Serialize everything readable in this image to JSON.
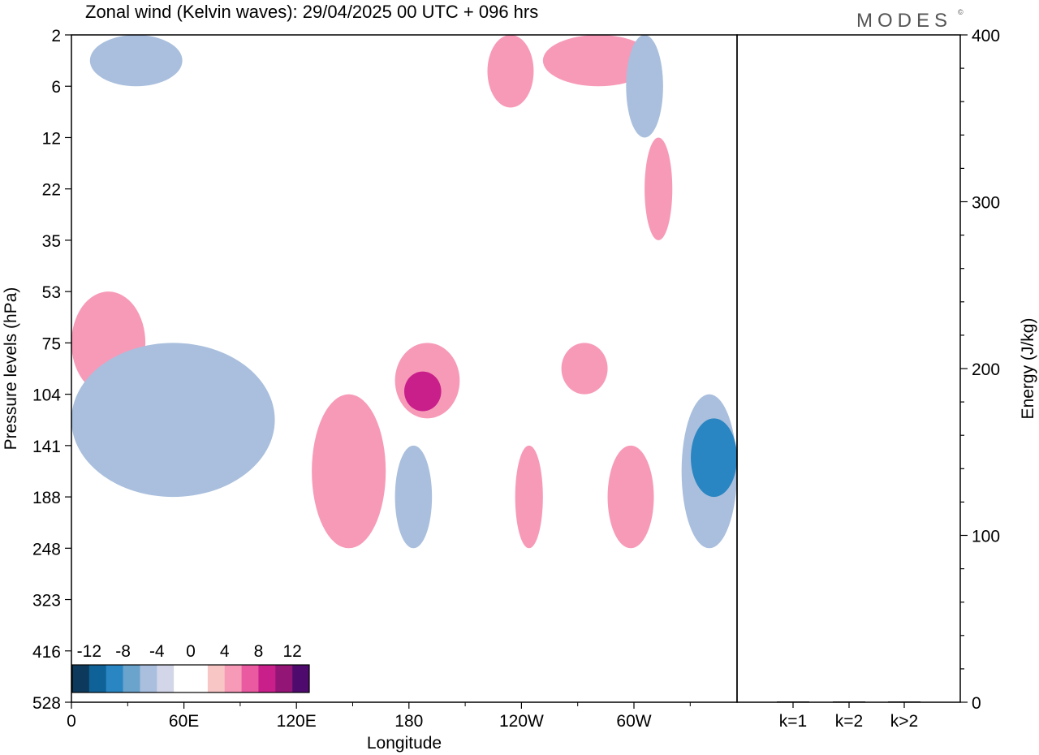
{
  "title": "Zonal wind (Kelvin waves):  29/04/2025  00 UTC  + 096 hrs",
  "logo": "MODES",
  "logo_mark": "©",
  "chart_data": [
    {
      "type": "heatmap",
      "variable": "Zonal wind (Kelvin waves)",
      "xlabel": "Longitude",
      "ylabel": "Pressure levels (hPa)",
      "x_ticks": [
        "0",
        "60E",
        "120E",
        "180",
        "120W",
        "60W"
      ],
      "y_ticks": [
        "2",
        "6",
        "12",
        "22",
        "35",
        "53",
        "75",
        "104",
        "141",
        "188",
        "248",
        "323",
        "416",
        "528"
      ],
      "colorbar": {
        "tick_labels": [
          "-12",
          "-8",
          "-4",
          "0",
          "4",
          "8",
          "12"
        ],
        "colors": [
          "#0d3a5c",
          "#0e6297",
          "#2a86c2",
          "#6aa3cc",
          "#a9bfdd",
          "#d3d6e8",
          "#ffffff",
          "#ffffff",
          "#f9c6c6",
          "#f79ab8",
          "#ea5aa0",
          "#c91f8a",
          "#931576",
          "#4f0a6e"
        ]
      },
      "regions": [
        {
          "sign": "positive",
          "level": 4,
          "lon": [
            0,
            40
          ],
          "hPa": [
            53,
            104
          ]
        },
        {
          "sign": "positive",
          "level": 4,
          "lon": [
            175,
            210
          ],
          "hPa": [
            75,
            120
          ]
        },
        {
          "sign": "positive",
          "level": 4,
          "lon": [
            130,
            170
          ],
          "hPa": [
            104,
            248
          ]
        },
        {
          "sign": "positive",
          "level": 4,
          "lon": [
            225,
            250
          ],
          "hPa": [
            2,
            8
          ]
        },
        {
          "sign": "positive",
          "level": 4,
          "lon": [
            255,
            315
          ],
          "hPa": [
            2,
            6
          ]
        },
        {
          "sign": "positive",
          "level": 4,
          "lon": [
            310,
            325
          ],
          "hPa": [
            12,
            35
          ]
        },
        {
          "sign": "positive",
          "level": 4,
          "lon": [
            265,
            290
          ],
          "hPa": [
            75,
            104
          ]
        },
        {
          "sign": "positive",
          "level": 4,
          "lon": [
            240,
            255
          ],
          "hPa": [
            141,
            248
          ]
        },
        {
          "sign": "positive",
          "level": 4,
          "lon": [
            290,
            315
          ],
          "hPa": [
            141,
            248
          ]
        },
        {
          "sign": "positive",
          "level": 8,
          "lon": [
            180,
            200
          ],
          "hPa": [
            90,
            115
          ]
        },
        {
          "sign": "negative",
          "level": -4,
          "lon": [
            0,
            110
          ],
          "hPa": [
            75,
            188
          ]
        },
        {
          "sign": "negative",
          "level": -4,
          "lon": [
            175,
            195
          ],
          "hPa": [
            141,
            248
          ]
        },
        {
          "sign": "negative",
          "level": -4,
          "lon": [
            300,
            320
          ],
          "hPa": [
            2,
            12
          ]
        },
        {
          "sign": "negative",
          "level": -4,
          "lon": [
            330,
            360
          ],
          "hPa": [
            104,
            248
          ]
        },
        {
          "sign": "negative",
          "level": -8,
          "lon": [
            335,
            360
          ],
          "hPa": [
            120,
            188
          ]
        },
        {
          "sign": "negative",
          "level": -4,
          "lon": [
            10,
            60
          ],
          "hPa": [
            2,
            6
          ]
        }
      ]
    },
    {
      "type": "bar",
      "categories": [
        "k=1",
        "k=2",
        "k>2"
      ],
      "values": [
        0,
        0,
        0
      ],
      "ylabel": "Energy (J/kg)",
      "ylim": [
        0,
        400
      ],
      "y_ticks": [
        "0",
        "100",
        "200",
        "300",
        "400"
      ]
    }
  ]
}
